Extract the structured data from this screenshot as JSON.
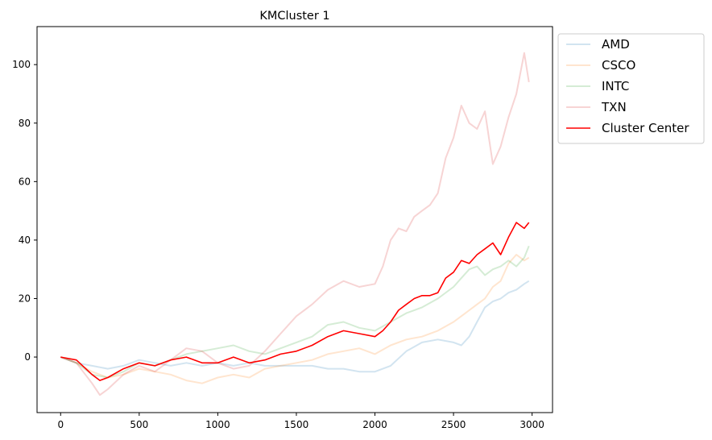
{
  "chart_data": {
    "type": "line",
    "title": "KMCluster 1",
    "xlabel": "",
    "ylabel": "",
    "xlim": [
      -150,
      3130
    ],
    "ylim": [
      -19,
      113
    ],
    "xticks": [
      0,
      500,
      1000,
      1500,
      2000,
      2500,
      3000
    ],
    "yticks": [
      0,
      20,
      40,
      60,
      80,
      100
    ],
    "grid": false,
    "legend_position": "outside-top-right",
    "series": [
      {
        "name": "AMD",
        "color": "#1f77b4",
        "alpha": 0.2,
        "x": [
          0,
          100,
          200,
          300,
          400,
          500,
          600,
          700,
          800,
          900,
          1000,
          1100,
          1200,
          1300,
          1400,
          1500,
          1600,
          1700,
          1800,
          1900,
          2000,
          2100,
          2200,
          2300,
          2400,
          2500,
          2550,
          2600,
          2650,
          2700,
          2750,
          2800,
          2850,
          2900,
          2950,
          2980
        ],
        "y": [
          0,
          -2,
          -3,
          -4,
          -3,
          -1,
          -2,
          -3,
          -2,
          -3,
          -2,
          -3,
          -2,
          -3,
          -3,
          -3,
          -3,
          -4,
          -4,
          -5,
          -5,
          -3,
          2,
          5,
          6,
          5,
          4,
          7,
          12,
          17,
          19,
          20,
          22,
          23,
          25,
          26
        ]
      },
      {
        "name": "CSCO",
        "color": "#ff7f0e",
        "alpha": 0.2,
        "x": [
          0,
          100,
          200,
          300,
          400,
          500,
          600,
          700,
          800,
          900,
          1000,
          1100,
          1200,
          1300,
          1400,
          1500,
          1600,
          1700,
          1800,
          1900,
          2000,
          2100,
          2200,
          2300,
          2400,
          2500,
          2550,
          2600,
          2650,
          2700,
          2750,
          2800,
          2850,
          2900,
          2950,
          2980
        ],
        "y": [
          0,
          -2,
          -5,
          -7,
          -6,
          -4,
          -5,
          -6,
          -8,
          -9,
          -7,
          -6,
          -7,
          -4,
          -3,
          -2,
          -1,
          1,
          2,
          3,
          1,
          4,
          6,
          7,
          9,
          12,
          14,
          16,
          18,
          20,
          24,
          26,
          32,
          35,
          33,
          34
        ]
      },
      {
        "name": "INTC",
        "color": "#2ca02c",
        "alpha": 0.2,
        "x": [
          0,
          100,
          200,
          300,
          400,
          500,
          600,
          700,
          800,
          900,
          1000,
          1100,
          1200,
          1300,
          1400,
          1500,
          1600,
          1700,
          1800,
          1900,
          2000,
          2100,
          2200,
          2300,
          2400,
          2500,
          2550,
          2600,
          2650,
          2700,
          2750,
          2800,
          2850,
          2900,
          2950,
          2980
        ],
        "y": [
          0,
          -2,
          -6,
          -7,
          -5,
          -2,
          -3,
          -1,
          1,
          2,
          3,
          4,
          2,
          1,
          3,
          5,
          7,
          11,
          12,
          10,
          9,
          12,
          15,
          17,
          20,
          24,
          27,
          30,
          31,
          28,
          30,
          31,
          33,
          31,
          34,
          38
        ]
      },
      {
        "name": "TXN",
        "color": "#d62728",
        "alpha": 0.2,
        "x": [
          0,
          100,
          200,
          250,
          300,
          400,
          500,
          600,
          700,
          800,
          900,
          1000,
          1100,
          1200,
          1300,
          1400,
          1500,
          1600,
          1700,
          1800,
          1900,
          2000,
          2050,
          2100,
          2150,
          2200,
          2250,
          2300,
          2350,
          2400,
          2450,
          2500,
          2550,
          2600,
          2650,
          2700,
          2750,
          2800,
          2850,
          2900,
          2950,
          2980
        ],
        "y": [
          0,
          -2,
          -9,
          -13,
          -11,
          -6,
          -3,
          -5,
          -1,
          3,
          2,
          -2,
          -4,
          -3,
          2,
          8,
          14,
          18,
          23,
          26,
          24,
          25,
          31,
          40,
          44,
          43,
          48,
          50,
          52,
          56,
          68,
          75,
          86,
          80,
          78,
          84,
          66,
          72,
          82,
          90,
          104,
          94
        ]
      },
      {
        "name": "Cluster Center",
        "color": "#ff0000",
        "alpha": 1.0,
        "x": [
          0,
          100,
          200,
          250,
          300,
          400,
          500,
          600,
          700,
          800,
          900,
          1000,
          1100,
          1200,
          1300,
          1400,
          1500,
          1600,
          1700,
          1800,
          1900,
          2000,
          2050,
          2100,
          2150,
          2200,
          2250,
          2300,
          2350,
          2400,
          2450,
          2500,
          2550,
          2600,
          2650,
          2700,
          2750,
          2800,
          2850,
          2900,
          2950,
          2980
        ],
        "y": [
          0,
          -1,
          -6,
          -8,
          -7,
          -4,
          -2,
          -3,
          -1,
          0,
          -2,
          -2,
          0,
          -2,
          -1,
          1,
          2,
          4,
          7,
          9,
          8,
          7,
          9,
          12,
          16,
          18,
          20,
          21,
          21,
          22,
          27,
          29,
          33,
          32,
          35,
          37,
          39,
          35,
          41,
          46,
          44,
          46
        ]
      }
    ]
  }
}
